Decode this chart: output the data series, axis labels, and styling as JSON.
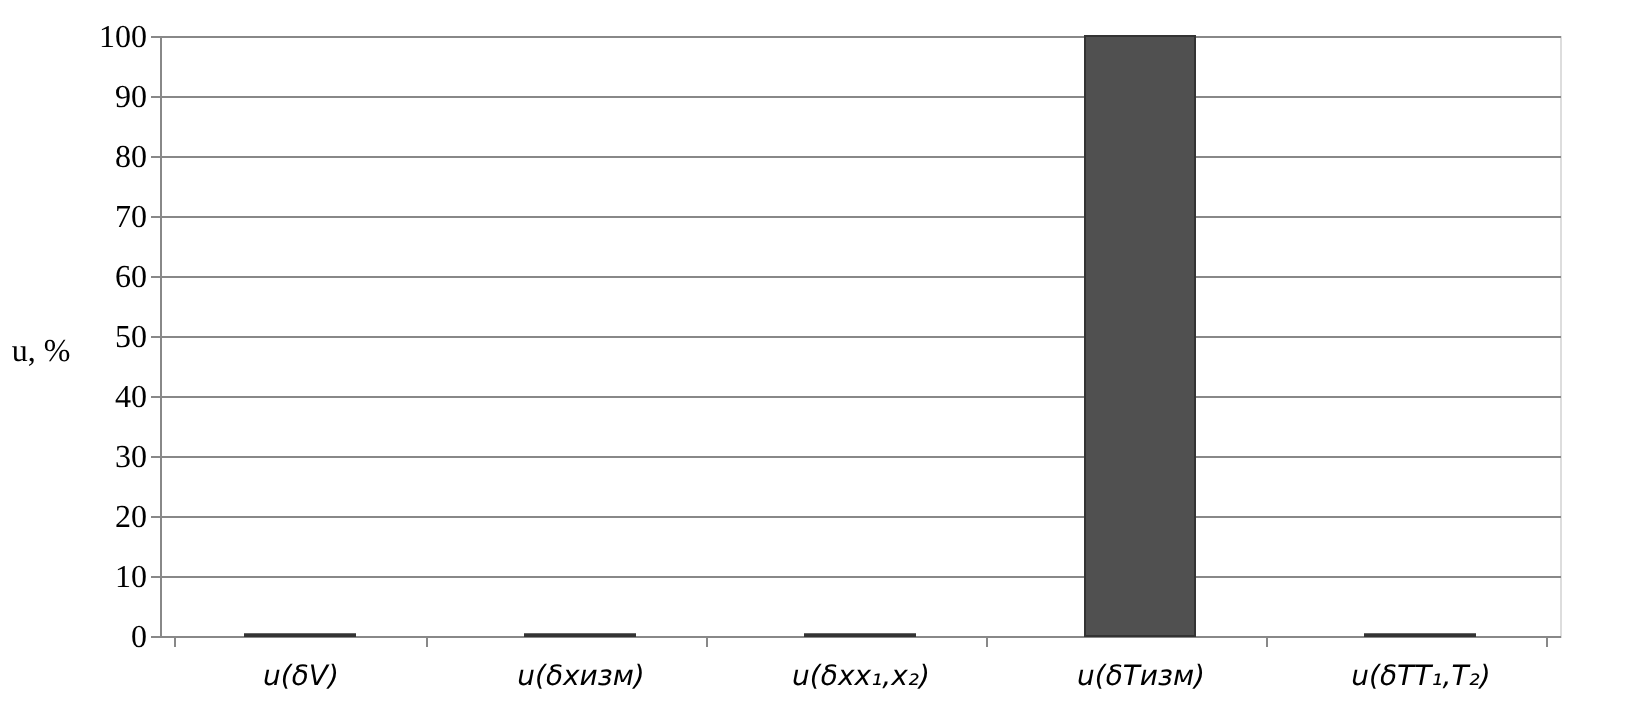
{
  "chart_data": {
    "type": "bar",
    "ylabel": "u, %",
    "categories": [
      "u(δV)",
      "u(δxизм)",
      "u(δxx₁,x₂)",
      "u(δTизм)",
      "u(δTT₁,T₂)"
    ],
    "values": [
      0.3,
      0.3,
      0.3,
      100,
      0.3
    ],
    "color": "#505050",
    "ylim": [
      0,
      100
    ],
    "yticks": [
      0,
      10,
      20,
      30,
      40,
      50,
      60,
      70,
      80,
      90,
      100
    ],
    "grid": "y"
  }
}
